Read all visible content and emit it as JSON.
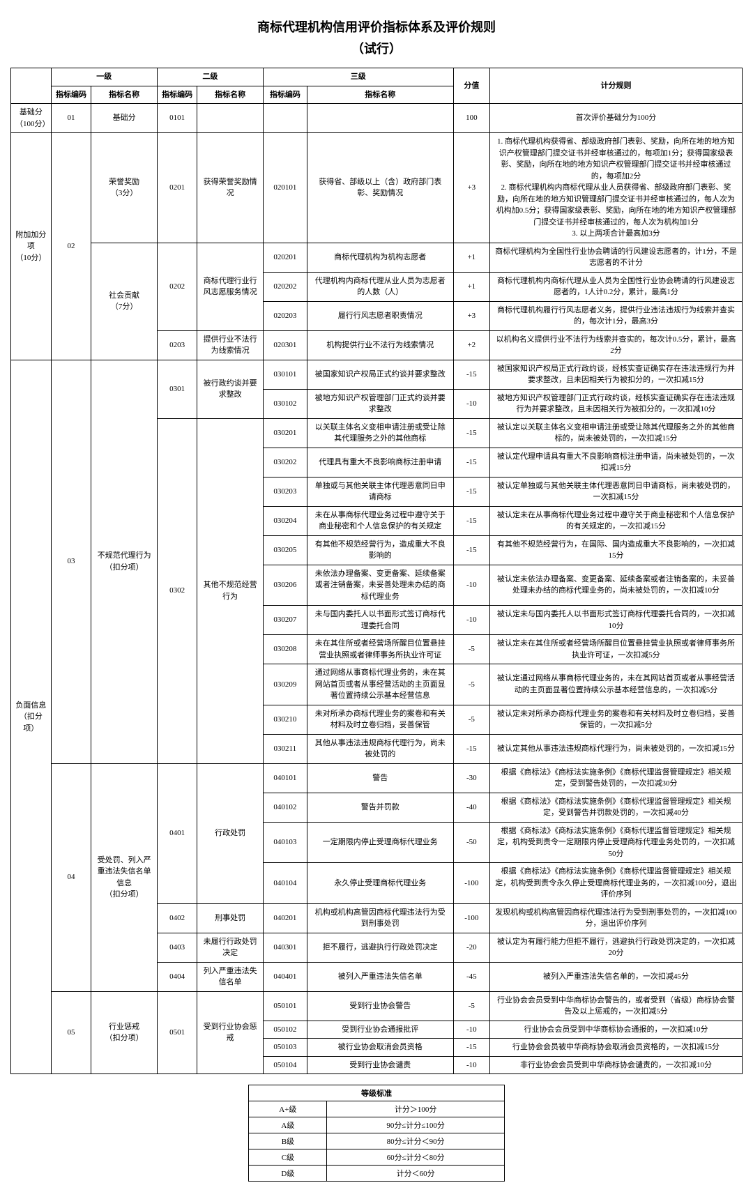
{
  "title": "商标代理机构信用评价指标体系及评价规则",
  "subtitle": "（试行）",
  "headers": {
    "level1": "一级",
    "level2": "二级",
    "level3": "三级",
    "code": "指标编码",
    "name": "指标名称",
    "score": "分值",
    "rule": "计分规则"
  },
  "categories": [
    {
      "label": "基础分\n（100分）"
    },
    {
      "label": "附加加分项\n（10分）"
    },
    {
      "label": "负面信息\n（扣分项）"
    }
  ],
  "rows": [
    {
      "cat": 0,
      "l1_code": "01",
      "l1_name": "基础分",
      "l2_code": "0101",
      "l2_name": "",
      "l3_code": "",
      "l3_name": "",
      "score": "100",
      "rule": "首次评价基础分为100分"
    },
    {
      "cat": 1,
      "l1_code": "02",
      "l1_name": "",
      "l1_name_sub": "",
      "l2_code": "0201",
      "l2_name": "获得荣誉奖励情况",
      "l3_code": "020101",
      "l3_name": "获得省、部级以上（含）政府部门表彰、奖励情况",
      "score": "+3",
      "rule": "1. 商标代理机构获得省、部级政府部门表彰、奖励，向所在地的地方知识产权管理部门提交证书并经审核通过的，每项加1分；获得国家级表彰、奖励，向所在地的地方知识产权管理部门提交证书并经审核通过的，每项加2分\n2. 商标代理机构内商标代理从业人员获得省、部级政府部门表彰、奖励，向所在地的地方知识管理部门提交证书并经审核通过的，每人次为机构加0.5分；获得国家级表彰、奖励，向所在地的地方知识产权管理部门提交证书并经审核通过的，每人次为机构加1分\n3. 以上两项合计最高加3分",
      "l1_names": [
        "荣誉奖励",
        "（3分）"
      ]
    },
    {
      "cat": 1,
      "l2_code": "0202",
      "l2_name": "商标代理行业行风志愿服务情况",
      "l3_code": "020201",
      "l3_name": "商标代理机构为机构志愿者",
      "score": "+1",
      "rule": "商标代理机构为全国性行业协会聘请的行风建设志愿者的，计1分，不是志愿者的不计分"
    },
    {
      "cat": 1,
      "l3_code": "020202",
      "l3_name": "代理机构内商标代理从业人员为志愿者的人数（人）",
      "score": "+1",
      "rule": "商标代理机构内商标代理从业人员为全国性行业协会聘请的行风建设志愿者的，1人计0.2分，累计，最高1分"
    },
    {
      "cat": 1,
      "l3_code": "020203",
      "l3_name": "履行行风志愿者职责情况",
      "score": "+3",
      "rule": "商标代理机构履行行风志愿者义务，提供行业违法违规行为线索并查实的，每次计1分，最高3分",
      "l1_names": [
        "社会贡献",
        "（7分）"
      ]
    },
    {
      "cat": 1,
      "l2_code": "0203",
      "l2_name": "提供行业不法行为线索情况",
      "l3_code": "020301",
      "l3_name": "机构提供行业不法行为线索情况",
      "score": "+2",
      "rule": "以机构名义提供行业不法行为线索并查实的，每次计0.5分，累计，最高2分"
    },
    {
      "cat": 2,
      "l1_code": "03",
      "l1_name": "不规范代理行为\n（扣分项）",
      "l2_code": "0301",
      "l2_name": "被行政约谈并要求整改",
      "l3_code": "030101",
      "l3_name": "被国家知识产权局正式约谈并要求整改",
      "score": "-15",
      "rule": "被国家知识产权局正式行政约谈，经核实查证确实存在违法违规行为并要求整改，且未因相关行为被扣分的，一次扣减15分"
    },
    {
      "cat": 2,
      "l3_code": "030102",
      "l3_name": "被地方知识产权管理部门正式约谈并要求整改",
      "score": "-10",
      "rule": "被地方知识产权管理部门正式行政约谈，经核实查证确实存在违法违规行为并要求整改，且未因相关行为被扣分的，一次扣减10分"
    },
    {
      "cat": 2,
      "l2_code": "0302",
      "l2_name": "其他不规范经营行为",
      "l3_code": "030201",
      "l3_name": "以关联主体名义变相申请注册或受让除其代理服务之外的其他商标",
      "score": "-15",
      "rule": "被认定以关联主体名义变相申请注册或受让除其代理服务之外的其他商标的，尚未被处罚的，一次扣减15分"
    },
    {
      "cat": 2,
      "l3_code": "030202",
      "l3_name": "代理具有重大不良影响商标注册申请",
      "score": "-15",
      "rule": "被认定代理申请具有重大不良影响商标注册申请，尚未被处罚的，一次扣减15分"
    },
    {
      "cat": 2,
      "l3_code": "030203",
      "l3_name": "单独或与其他关联主体代理恶意同日申请商标",
      "score": "-15",
      "rule": "被认定单独或与其他关联主体代理恶意同日申请商标，尚未被处罚的，一次扣减15分"
    },
    {
      "cat": 2,
      "l3_code": "030204",
      "l3_name": "未在从事商标代理业务过程中遵守关于商业秘密和个人信息保护的有关规定",
      "score": "-15",
      "rule": "被认定未在从事商标代理业务过程中遵守关于商业秘密和个人信息保护的有关规定的，一次扣减15分"
    },
    {
      "cat": 2,
      "l3_code": "030205",
      "l3_name": "有其他不规范经营行为，造成重大不良影响的",
      "score": "-15",
      "rule": "有其他不规范经营行为，在国际、国内造成重大不良影响的，一次扣减15分"
    },
    {
      "cat": 2,
      "l3_code": "030206",
      "l3_name": "未依法办理备案、变更备案、延续备案或者注销备案，未妥善处理未办结的商标代理业务",
      "score": "-10",
      "rule": "被认定未依法办理备案、变更备案、延续备案或者注销备案的，未妥善处理未办结的商标代理业务的，尚未被处罚的，一次扣减10分"
    },
    {
      "cat": 2,
      "l3_code": "030207",
      "l3_name": "未与国内委托人以书面形式签订商标代理委托合同",
      "score": "-10",
      "rule": "被认定未与国内委托人以书面形式签订商标代理委托合同的，一次扣减10分"
    },
    {
      "cat": 2,
      "l3_code": "030208",
      "l3_name": "未在其住所或者经营场所醒目位置悬挂营业执照或者律师事务所执业许可证",
      "score": "-5",
      "rule": "被认定未在其住所或者经营场所醒目位置悬挂营业执照或者律师事务所执业许可证，一次扣减5分"
    },
    {
      "cat": 2,
      "l3_code": "030209",
      "l3_name": "通过网络从事商标代理业务的，未在其网站首页或者从事经营活动的主页面显著位置持续公示基本经营信息",
      "score": "-5",
      "rule": "被认定通过网络从事商标代理业务的，未在其网站首页或者从事经营活动的主页面显著位置持续公示基本经营信息的，一次扣减5分"
    },
    {
      "cat": 2,
      "l3_code": "030210",
      "l3_name": "未对所承办商标代理业务的案卷和有关材料及时立卷归档，妥善保管",
      "score": "-5",
      "rule": "被认定未对所承办商标代理业务的案卷和有关材料及时立卷归档，妥善保管的，一次扣减5分"
    },
    {
      "cat": 2,
      "l3_code": "030211",
      "l3_name": "其他从事违法违规商标代理行为，尚未被处罚的",
      "score": "-15",
      "rule": "被认定其他从事违法违规商标代理行为，尚未被处罚的，一次扣减15分"
    },
    {
      "cat": 2,
      "l1_code": "04",
      "l1_name": "受处罚、列入严重违法失信名单信息\n（扣分项）",
      "l2_code": "0401",
      "l2_name": "行政处罚",
      "l3_code": "040101",
      "l3_name": "警告",
      "score": "-30",
      "rule": "根据《商标法》《商标法实施条例》《商标代理监督管理规定》相关规定，受到警告处罚的，一次扣减30分"
    },
    {
      "cat": 2,
      "l3_code": "040102",
      "l3_name": "警告并罚款",
      "score": "-40",
      "rule": "根据《商标法》《商标法实施条例》《商标代理监督管理规定》相关规定，受到警告并罚款处罚的，一次扣减40分"
    },
    {
      "cat": 2,
      "l3_code": "040103",
      "l3_name": "一定期限内停止受理商标代理业务",
      "score": "-50",
      "rule": "根据《商标法》《商标法实施条例》《商标代理监督管理规定》相关规定，机构受到责令一定期限内停止受理商标代理业务处罚的，一次扣减50分"
    },
    {
      "cat": 2,
      "l3_code": "040104",
      "l3_name": "永久停止受理商标代理业务",
      "score": "-100",
      "rule": "根据《商标法》《商标法实施条例》《商标代理监督管理规定》相关规定，机构受到责令永久停止受理商标代理业务的，一次扣减100分，退出评价序列"
    },
    {
      "cat": 2,
      "l2_code": "0402",
      "l2_name": "刑事处罚",
      "l3_code": "040201",
      "l3_name": "机构或机构高管因商标代理违法行为受到刑事处罚",
      "score": "-100",
      "rule": "发现机构或机构高管因商标代理违法行为受到刑事处罚的，一次扣减100分，退出评价序列"
    },
    {
      "cat": 2,
      "l2_code": "0403",
      "l2_name": "未履行行政处罚决定",
      "l3_code": "040301",
      "l3_name": "拒不履行，逃避执行行政处罚决定",
      "score": "-20",
      "rule": "被认定为有履行能力但拒不履行，逃避执行行政处罚决定的，一次扣减20分"
    },
    {
      "cat": 2,
      "l2_code": "0404",
      "l2_name": "列入严重违法失信名单",
      "l3_code": "040401",
      "l3_name": "被列入严重违法失信名单",
      "score": "-45",
      "rule": "被列入严重违法失信名单的，一次扣减45分"
    },
    {
      "cat": 2,
      "l1_code": "05",
      "l1_name": "行业惩戒\n（扣分项）",
      "l2_code": "0501",
      "l2_name": "受到行业协会惩戒",
      "l3_code": "050101",
      "l3_name": "受到行业协会警告",
      "score": "-5",
      "rule": "行业协会会员受到中华商标协会警告的，或者受到（省级）商标协会警告及以上惩戒的，一次扣减5分"
    },
    {
      "cat": 2,
      "l3_code": "050102",
      "l3_name": "受到行业协会通报批评",
      "score": "-10",
      "rule": "行业协会会员受到中华商标协会通报的，一次扣减10分"
    },
    {
      "cat": 2,
      "l3_code": "050103",
      "l3_name": "被行业协会取消会员资格",
      "score": "-15",
      "rule": "行业协会会员被中华商标协会取消会员资格的，一次扣减15分"
    },
    {
      "cat": 2,
      "l3_code": "050104",
      "l3_name": "受到行业协会谴责",
      "score": "-10",
      "rule": "非行业协会会员受到中华商标协会谴责的，一次扣减10分"
    }
  ],
  "grade": {
    "title": "等级标准",
    "rows": [
      {
        "level": "A+级",
        "range": "计分＞100分"
      },
      {
        "level": "A级",
        "range": "90分≤计分≤100分"
      },
      {
        "level": "B级",
        "range": "80分≤计分＜90分"
      },
      {
        "level": "C级",
        "range": "60分≤计分＜80分"
      },
      {
        "level": "D级",
        "range": "计分＜60分"
      }
    ]
  }
}
